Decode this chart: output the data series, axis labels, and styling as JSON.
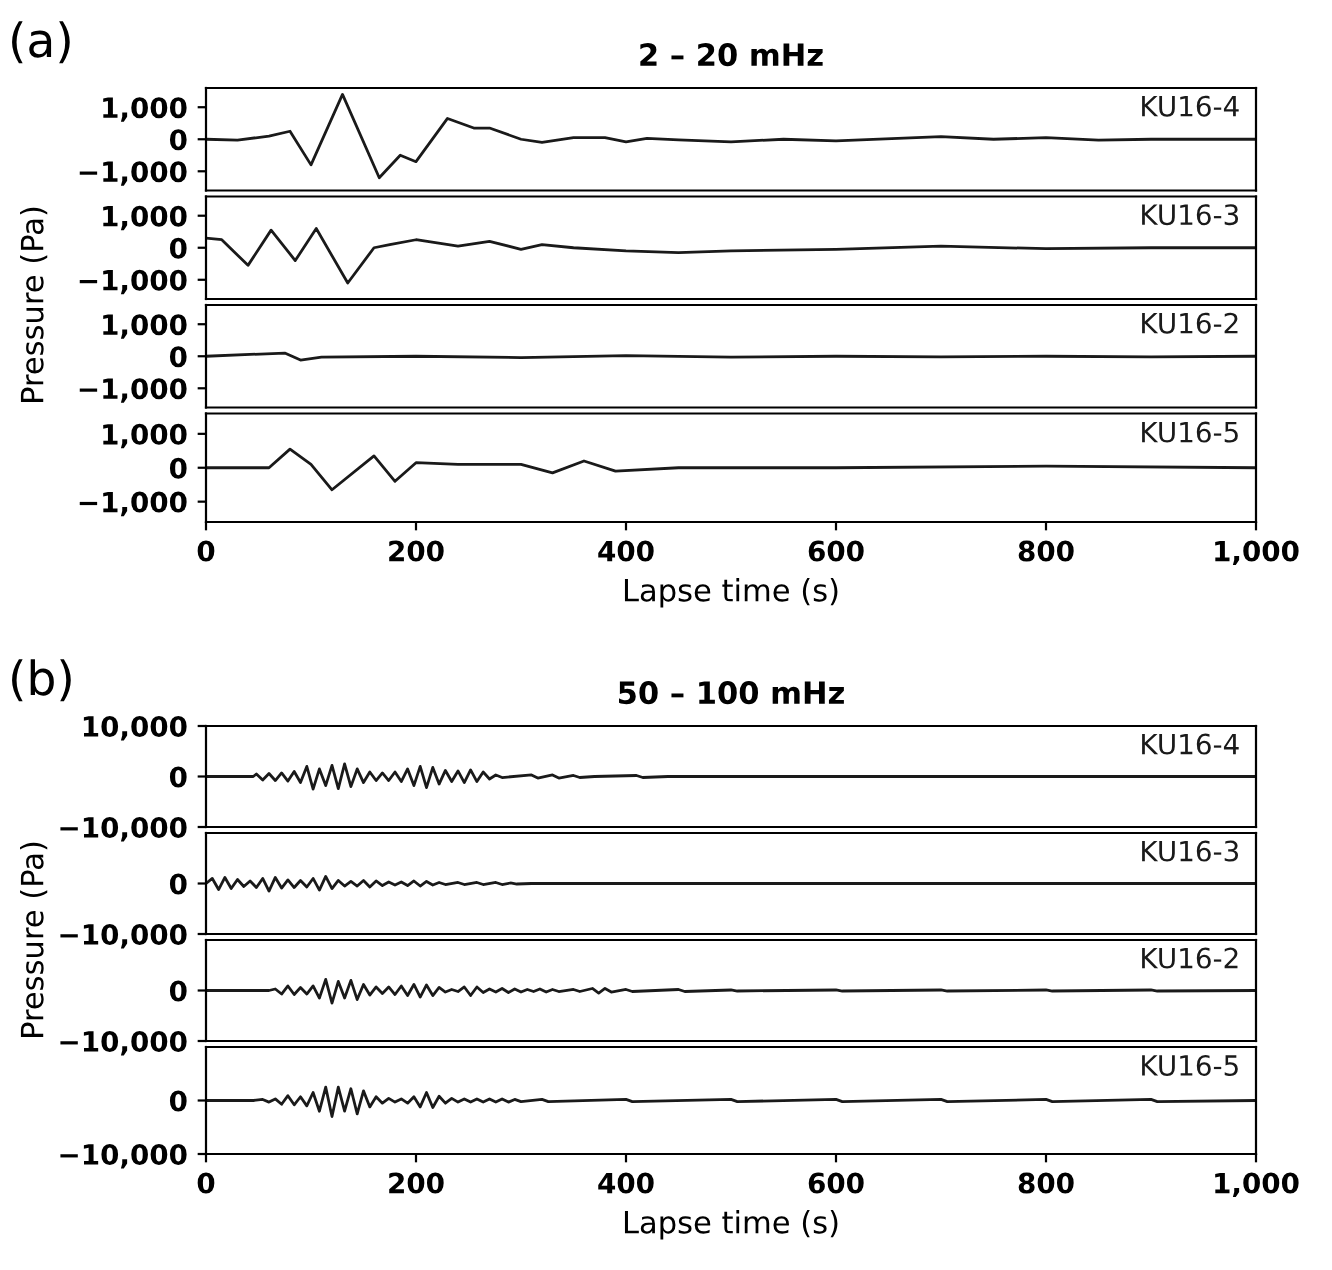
{
  "chart_data": [
    {
      "type": "line",
      "title": "2 – 20 mHz",
      "ylabel": "Pressure (Pa)",
      "annotations": [
        "(a)"
      ],
      "xlim": [
        0,
        1000
      ],
      "ylim": [
        -1600,
        1600
      ],
      "yticks": [
        {
          "value": 1000,
          "label": "1,000"
        },
        0,
        {
          "value": -1000,
          "label": "−1,000"
        }
      ],
      "tick_labels": "y",
      "legend": false,
      "grid": false,
      "series": [
        {
          "name": "KU16-4",
          "color": "#1a1a1a",
          "x": [
            0,
            30,
            60,
            80,
            100,
            130,
            165,
            185,
            200,
            230,
            255,
            270,
            300,
            320,
            350,
            380,
            400,
            420,
            450,
            500,
            550,
            600,
            700,
            750,
            800,
            850,
            900,
            1000
          ],
          "values": [
            0,
            -30,
            100,
            250,
            -800,
            1400,
            -1200,
            -500,
            -700,
            650,
            350,
            350,
            0,
            -100,
            50,
            50,
            -80,
            30,
            -20,
            -80,
            0,
            -50,
            80,
            0,
            50,
            -30,
            0,
            0
          ]
        }
      ]
    },
    {
      "type": "line",
      "xlim": [
        0,
        1000
      ],
      "ylim": [
        -1600,
        1600
      ],
      "yticks": [
        {
          "value": 1000,
          "label": "1,000"
        },
        0,
        {
          "value": -1000,
          "label": "−1,000"
        }
      ],
      "tick_labels": "y",
      "legend": false,
      "grid": false,
      "series": [
        {
          "name": "KU16-3",
          "color": "#1a1a1a",
          "x": [
            0,
            15,
            40,
            62,
            85,
            105,
            135,
            160,
            175,
            200,
            240,
            270,
            300,
            320,
            350,
            400,
            450,
            500,
            600,
            700,
            800,
            900,
            1000
          ],
          "values": [
            300,
            250,
            -550,
            550,
            -400,
            600,
            -1100,
            0,
            100,
            250,
            50,
            200,
            -50,
            100,
            0,
            -100,
            -150,
            -100,
            -50,
            50,
            -30,
            0,
            0
          ]
        }
      ]
    },
    {
      "type": "line",
      "xlim": [
        0,
        1000
      ],
      "ylim": [
        -1600,
        1600
      ],
      "yticks": [
        {
          "value": 1000,
          "label": "1,000"
        },
        0,
        {
          "value": -1000,
          "label": "−1,000"
        }
      ],
      "tick_labels": "y",
      "legend": false,
      "grid": false,
      "series": [
        {
          "name": "KU16-2",
          "color": "#1a1a1a",
          "x": [
            0,
            75,
            90,
            110,
            200,
            300,
            400,
            500,
            600,
            700,
            800,
            900,
            1000
          ],
          "values": [
            0,
            100,
            -120,
            -30,
            0,
            -40,
            20,
            -30,
            0,
            -20,
            0,
            -20,
            0
          ]
        }
      ]
    },
    {
      "type": "line",
      "xlabel": "Lapse time (s)",
      "xlim": [
        0,
        1000
      ],
      "xticks": [
        0,
        200,
        400,
        600,
        800,
        {
          "value": 1000,
          "label": "1,000"
        }
      ],
      "ylim": [
        -1600,
        1600
      ],
      "yticks": [
        {
          "value": 1000,
          "label": "1,000"
        },
        0,
        {
          "value": -1000,
          "label": "−1,000"
        }
      ],
      "legend": false,
      "grid": false,
      "series": [
        {
          "name": "KU16-5",
          "color": "#1a1a1a",
          "x": [
            0,
            60,
            80,
            100,
            120,
            160,
            180,
            200,
            240,
            280,
            300,
            330,
            360,
            390,
            450,
            500,
            600,
            800,
            1000
          ],
          "values": [
            0,
            0,
            550,
            100,
            -650,
            350,
            -400,
            150,
            100,
            100,
            100,
            -150,
            200,
            -100,
            0,
            0,
            0,
            50,
            0
          ]
        }
      ]
    },
    {
      "type": "line",
      "title": "50 – 100 mHz",
      "ylabel": "Pressure (Pa)",
      "annotations": [
        "(b)"
      ],
      "xlim": [
        0,
        1000
      ],
      "ylim": [
        -10000,
        10000
      ],
      "yticks": [
        {
          "value": 10000,
          "label": "10,000"
        },
        0,
        {
          "value": -10000,
          "label": "−10,000"
        }
      ],
      "tick_labels": "y",
      "legend": false,
      "grid": false,
      "series": [
        {
          "name": "KU16-4",
          "color": "#1a1a1a",
          "x": [
            0,
            45,
            48,
            54,
            60,
            66,
            72,
            78,
            84,
            90,
            96,
            102,
            108,
            114,
            120,
            126,
            132,
            138,
            144,
            150,
            156,
            162,
            168,
            174,
            180,
            186,
            192,
            198,
            204,
            210,
            216,
            222,
            228,
            234,
            240,
            246,
            252,
            258,
            264,
            270,
            276,
            282,
            310,
            316,
            330,
            336,
            350,
            356,
            370,
            410,
            416,
            440,
            1000
          ],
          "values": [
            0,
            0,
            500,
            -700,
            600,
            -800,
            700,
            -900,
            1000,
            -1200,
            2000,
            -2500,
            1500,
            -1800,
            2200,
            -2400,
            2500,
            -2000,
            1500,
            -1200,
            900,
            -800,
            700,
            -800,
            900,
            -1000,
            1500,
            -1800,
            2000,
            -2200,
            1800,
            -1500,
            1200,
            -1000,
            1100,
            -1200,
            1300,
            -1000,
            900,
            -500,
            300,
            -200,
            300,
            -300,
            300,
            -300,
            200,
            -200,
            0,
            200,
            -200,
            0,
            0
          ]
        }
      ]
    },
    {
      "type": "line",
      "xlim": [
        0,
        1000
      ],
      "ylim": [
        -10000,
        10000
      ],
      "yticks": [
        0,
        {
          "value": -10000,
          "label": "−10,000"
        }
      ],
      "tick_labels": "y",
      "legend": false,
      "grid": false,
      "series": [
        {
          "name": "KU16-3",
          "color": "#1a1a1a",
          "x": [
            0,
            6,
            12,
            18,
            24,
            30,
            36,
            42,
            48,
            54,
            60,
            66,
            72,
            78,
            84,
            90,
            96,
            102,
            108,
            114,
            120,
            126,
            132,
            138,
            144,
            150,
            156,
            162,
            168,
            174,
            180,
            186,
            192,
            198,
            204,
            210,
            216,
            222,
            228,
            240,
            246,
            258,
            264,
            276,
            282,
            290,
            296,
            310,
            1000
          ],
          "values": [
            0,
            1000,
            -1200,
            1200,
            -1000,
            800,
            -600,
            500,
            -800,
            1000,
            -1500,
            1200,
            -900,
            700,
            -800,
            600,
            -700,
            1000,
            -1300,
            1400,
            -1000,
            600,
            -500,
            400,
            -500,
            600,
            -700,
            500,
            -400,
            300,
            -300,
            300,
            -400,
            500,
            -500,
            400,
            -300,
            200,
            -200,
            200,
            -200,
            200,
            -200,
            200,
            -200,
            100,
            -100,
            0,
            0
          ]
        }
      ]
    },
    {
      "type": "line",
      "xlim": [
        0,
        1000
      ],
      "ylim": [
        -10000,
        10000
      ],
      "yticks": [
        0,
        {
          "value": -10000,
          "label": "−10,000"
        }
      ],
      "tick_labels": "y",
      "legend": false,
      "grid": false,
      "series": [
        {
          "name": "KU16-2",
          "color": "#1a1a1a",
          "x": [
            0,
            60,
            66,
            72,
            78,
            84,
            90,
            96,
            102,
            108,
            114,
            120,
            126,
            132,
            138,
            144,
            150,
            156,
            162,
            168,
            174,
            180,
            186,
            192,
            198,
            204,
            210,
            216,
            222,
            228,
            234,
            240,
            246,
            252,
            258,
            264,
            270,
            276,
            282,
            288,
            294,
            300,
            306,
            312,
            318,
            324,
            330,
            336,
            350,
            356,
            368,
            374,
            380,
            386,
            400,
            406,
            450,
            456,
            500,
            506,
            600,
            606,
            700,
            706,
            800,
            806,
            900,
            906,
            1000
          ],
          "values": [
            0,
            0,
            300,
            -700,
            900,
            -800,
            600,
            -700,
            900,
            -1500,
            2200,
            -2500,
            1800,
            -1500,
            2000,
            -1800,
            1200,
            -900,
            700,
            -600,
            700,
            -800,
            900,
            -1000,
            1200,
            -1300,
            1100,
            -1000,
            600,
            -300,
            200,
            -200,
            700,
            -1000,
            700,
            -400,
            300,
            -300,
            400,
            -400,
            300,
            -300,
            200,
            -200,
            300,
            -300,
            200,
            -200,
            200,
            -200,
            400,
            -500,
            400,
            -300,
            200,
            -200,
            200,
            -200,
            100,
            -100,
            100,
            -100,
            100,
            -100,
            100,
            -100,
            100,
            -100,
            0
          ]
        }
      ]
    },
    {
      "type": "line",
      "xlabel": "Lapse time (s)",
      "xlim": [
        0,
        1000
      ],
      "xticks": [
        0,
        200,
        400,
        600,
        800,
        {
          "value": 1000,
          "label": "1,000"
        }
      ],
      "ylim": [
        -10000,
        10000
      ],
      "yticks": [
        0,
        {
          "value": -10000,
          "label": "−10,000"
        }
      ],
      "legend": false,
      "grid": false,
      "series": [
        {
          "name": "KU16-5",
          "color": "#1a1a1a",
          "x": [
            0,
            45,
            54,
            60,
            66,
            72,
            78,
            84,
            90,
            96,
            102,
            108,
            114,
            120,
            126,
            132,
            138,
            144,
            150,
            156,
            162,
            168,
            174,
            180,
            186,
            192,
            198,
            204,
            210,
            216,
            222,
            228,
            234,
            240,
            246,
            252,
            258,
            264,
            270,
            276,
            282,
            288,
            294,
            300,
            320,
            326,
            400,
            406,
            500,
            506,
            600,
            606,
            700,
            706,
            800,
            806,
            900,
            906,
            1000
          ],
          "values": [
            0,
            0,
            200,
            -300,
            300,
            -700,
            900,
            -800,
            700,
            -1000,
            1500,
            -2000,
            2500,
            -3000,
            2500,
            -2000,
            2200,
            -2500,
            1800,
            -1200,
            700,
            -500,
            400,
            -300,
            300,
            -500,
            700,
            -1200,
            1500,
            -1300,
            800,
            -500,
            400,
            -300,
            300,
            -300,
            300,
            -300,
            300,
            -300,
            300,
            -300,
            200,
            -200,
            200,
            -200,
            200,
            -200,
            200,
            -200,
            200,
            -200,
            200,
            -200,
            200,
            -200,
            200,
            -200,
            0
          ]
        }
      ]
    }
  ]
}
